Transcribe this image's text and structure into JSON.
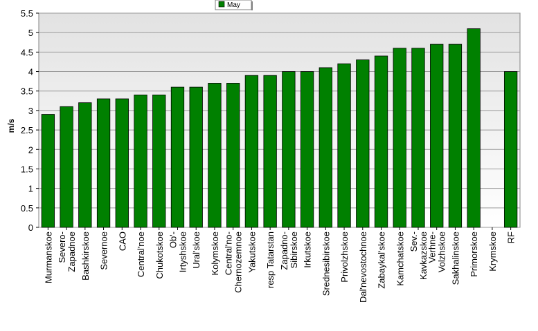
{
  "chart_data": {
    "type": "bar",
    "ylabel": "m/s",
    "xlabel": "",
    "ylim": [
      0,
      5.5
    ],
    "yticks": [
      "0",
      "0.5",
      "1",
      "1.5",
      "2",
      "2.5",
      "3",
      "3.5",
      "4",
      "4.5",
      "5",
      "5.5"
    ],
    "grid": true,
    "legend_position": "top-center",
    "series": [
      {
        "name": "May",
        "color": "#008000",
        "values": [
          2.9,
          3.1,
          3.2,
          3.3,
          3.3,
          3.4,
          3.4,
          3.6,
          3.6,
          3.7,
          3.7,
          3.9,
          3.9,
          4.0,
          4.0,
          4.1,
          4.2,
          4.3,
          4.4,
          4.6,
          4.6,
          4.7,
          4.7,
          5.1,
          null,
          4.0
        ]
      }
    ],
    "categories": [
      "Murmanskoe",
      "Severo-Zapadnoe",
      "Bashkirskoe",
      "Severnoe",
      "CAO",
      "Central'noe",
      "Chukotskoe",
      "Ob'-Irtyshskoe",
      "Ural'skoe",
      "Kolymskoe",
      "Central'no-Chernozemnoe",
      "Yakutskoe",
      "resp Tatarstan",
      "Zapadno-Sibirskoe",
      "Irkutskoe",
      "Srednesibirskoe",
      "Privolzhskoe",
      "Dal'nevostochnoe",
      "Zabaykal'skoe",
      "Kamchatskoe",
      "Sev.-Kavkazskoe",
      "Verhne-Volzhskoe",
      "Sakhalinskoe",
      "Primorskoe",
      "Krymskoe",
      "RF"
    ],
    "category_lines": [
      [
        "Murmanskoe"
      ],
      [
        "Severo-",
        "Zapadnoe"
      ],
      [
        "Bashkirskoe"
      ],
      [
        "Severnoe"
      ],
      [
        "CAO"
      ],
      [
        "Central'noe"
      ],
      [
        "Chukotskoe"
      ],
      [
        "Ob'-",
        "Irtyshskoe"
      ],
      [
        "Ural'skoe"
      ],
      [
        "Kolymskoe"
      ],
      [
        "Central'no-",
        "Chernozemnoe"
      ],
      [
        "Yakutskoe"
      ],
      [
        "resp Tatarstan"
      ],
      [
        "Zapadno-",
        "Sibirskoe"
      ],
      [
        "Irkutskoe"
      ],
      [
        "Srednesibirskoe"
      ],
      [
        "Privolzhskoe"
      ],
      [
        "Dal'nevostochnoe"
      ],
      [
        "Zabaykal'skoe"
      ],
      [
        "Kamchatskoe"
      ],
      [
        "Sev.-",
        "Kavkazskoe"
      ],
      [
        "Verhne-",
        "Volzhskoe"
      ],
      [
        "Sakhalinskoe"
      ],
      [
        "Primorskoe"
      ],
      [
        "Krymskoe"
      ],
      [
        "RF"
      ]
    ]
  }
}
